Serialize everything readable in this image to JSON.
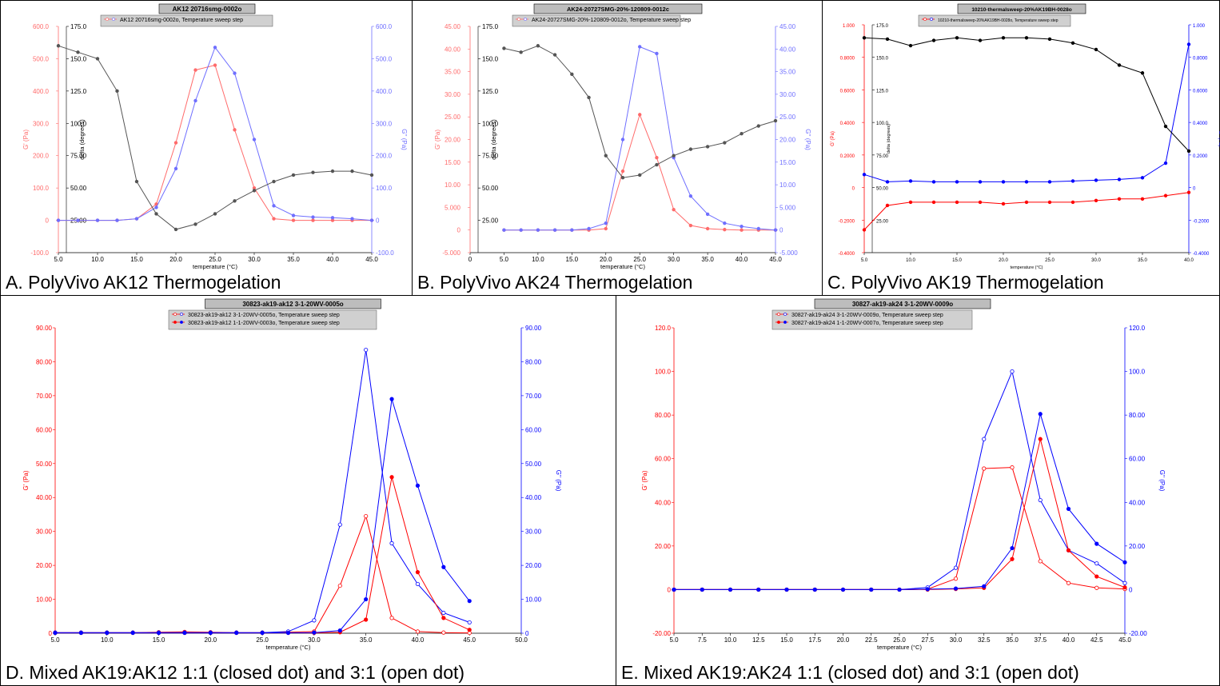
{
  "captions": {
    "a": "A. PolyVivo AK12 Thermogelation",
    "b": "B. PolyVivo AK24 Thermogelation",
    "c": "C. PolyVivo AK19 Thermogelation",
    "d": "D. Mixed AK19:AK12 1:1 (closed dot) and 3:1 (open dot)",
    "e": "E. Mixed AK19:AK24 1:1 (closed dot) and 3:1 (open dot)"
  },
  "colors": {
    "red": "#ff0000",
    "blue": "#0000ff",
    "black": "#000000",
    "pink": "#ff6b6b",
    "lightblue": "#6f6fff",
    "gray": "#555555"
  },
  "chart_data": [
    {
      "id": "a",
      "type": "line",
      "title": "AK12 20716smg-0002o",
      "legend": [
        "AK12 20716smg-0002o, Temperature sweep step"
      ],
      "xlabel": "temperature (°C)",
      "ylabel_left": "G' (Pa)",
      "ylabel_mid": "delta (degrees)",
      "ylabel_right": "G'' (Pa)",
      "xlim": [
        5,
        45
      ],
      "ylim_left": [
        -100,
        600
      ],
      "ylim_mid": [
        0,
        175
      ],
      "ylim_right": [
        -100,
        600
      ],
      "x_ticks": [
        "5.0",
        "10.0",
        "15.0",
        "20.0",
        "25.0",
        "30.0",
        "35.0",
        "40.0",
        "45.0"
      ],
      "y_ticks_left": [
        "-100.0",
        "0",
        "100.0",
        "200.0",
        "300.0",
        "400.0",
        "500.0",
        "600.0"
      ],
      "y_ticks_mid": [
        "25.00",
        "50.00",
        "75.00",
        "100.0",
        "125.0",
        "150.0",
        "175.0"
      ],
      "y_ticks_right": [
        "-100.0",
        "0",
        "100.0",
        "200.0",
        "300.0",
        "400.0",
        "500.0",
        "600.0"
      ],
      "series": [
        {
          "axis": "left",
          "color": "pink",
          "x": [
            5,
            7.5,
            10,
            12.5,
            15,
            17.5,
            20,
            22.5,
            25,
            27.5,
            30,
            32.5,
            35,
            37.5,
            40,
            42.5,
            45
          ],
          "values": [
            0,
            0,
            0,
            0,
            5,
            50,
            240,
            465,
            480,
            280,
            100,
            5,
            0,
            0,
            0,
            0,
            0
          ]
        },
        {
          "axis": "right",
          "color": "lightblue",
          "x": [
            5,
            7.5,
            10,
            12.5,
            15,
            17.5,
            20,
            22.5,
            25,
            27.5,
            30,
            32.5,
            35,
            37.5,
            40,
            42.5,
            45
          ],
          "values": [
            0,
            0,
            0,
            0,
            5,
            40,
            160,
            370,
            535,
            455,
            250,
            45,
            15,
            10,
            8,
            5,
            0
          ]
        },
        {
          "axis": "mid",
          "color": "gray",
          "x": [
            5,
            7.5,
            10,
            12.5,
            15,
            17.5,
            20,
            22.5,
            25,
            27.5,
            30,
            32.5,
            35,
            37.5,
            40,
            42.5,
            45
          ],
          "values": [
            160,
            155,
            150,
            125,
            55,
            30,
            18,
            22,
            30,
            40,
            48,
            55,
            60,
            62,
            63,
            63,
            60
          ]
        }
      ]
    },
    {
      "id": "b",
      "type": "line",
      "title": "AK24-20727SMG-20%-120809-0012c",
      "legend": [
        "AK24-20727SMG-20%-120809-0012o, Temperature sweep step"
      ],
      "xlabel": "temperature (°C)",
      "ylabel_left": "G' (Pa)",
      "ylabel_mid": "delta (degrees)",
      "ylabel_right": "G'' (Pa)",
      "xlim": [
        0,
        45
      ],
      "ylim_left": [
        -5,
        45
      ],
      "ylim_mid": [
        0,
        175
      ],
      "ylim_right": [
        -5,
        45
      ],
      "x_ticks": [
        "0",
        "5.0",
        "10.0",
        "15.0",
        "20.0",
        "25.0",
        "30.0",
        "35.0",
        "40.0",
        "45.0"
      ],
      "y_ticks_left": [
        "-5.000",
        "0",
        "5.000",
        "10.00",
        "15.00",
        "20.00",
        "25.00",
        "30.00",
        "35.00",
        "40.00",
        "45.00"
      ],
      "y_ticks_mid": [
        "25.00",
        "50.00",
        "75.00",
        "100.0",
        "125.0",
        "150.0",
        "175.0"
      ],
      "y_ticks_right": [
        "-5.000",
        "0",
        "5.000",
        "10.00",
        "15.00",
        "20.00",
        "25.00",
        "30.00",
        "35.00",
        "40.00",
        "45.00"
      ],
      "series": [
        {
          "axis": "left",
          "color": "pink",
          "x": [
            5,
            7.5,
            10,
            12.5,
            15,
            17.5,
            20,
            22.5,
            25,
            27.5,
            30,
            32.5,
            35,
            37.5,
            40,
            42.5,
            45
          ],
          "values": [
            0,
            0,
            0,
            0,
            0,
            0,
            0.3,
            13,
            25.5,
            16,
            4.5,
            1,
            0.3,
            0.1,
            0,
            0,
            0
          ]
        },
        {
          "axis": "right",
          "color": "lightblue",
          "x": [
            5,
            7.5,
            10,
            12.5,
            15,
            17.5,
            20,
            22.5,
            25,
            27.5,
            30,
            32.5,
            35,
            37.5,
            40,
            42.5,
            45
          ],
          "values": [
            0,
            0,
            0,
            0,
            0,
            0.3,
            1.5,
            20,
            40.5,
            39,
            16,
            7.5,
            3.5,
            1.5,
            0.8,
            0.3,
            0
          ]
        },
        {
          "axis": "mid",
          "color": "gray",
          "x": [
            5,
            7.5,
            10,
            12.5,
            15,
            17.5,
            20,
            22.5,
            25,
            27.5,
            30,
            32.5,
            35,
            37.5,
            40,
            42.5,
            45
          ],
          "values": [
            158,
            155,
            160,
            153,
            138,
            120,
            75,
            58,
            60,
            68,
            75,
            80,
            82,
            85,
            92,
            98,
            102
          ]
        }
      ]
    },
    {
      "id": "c",
      "type": "line",
      "title": "10210-thermalsweep-20%AK19BH-0028o",
      "legend": [
        "10210-thermalsweep-20%AK19BH-0028o, Temperature sweep step"
      ],
      "xlabel": "temperature (°C)",
      "ylabel_left": "G' (Pa)",
      "ylabel_mid": "delta (degrees)",
      "ylabel_right": "G'' (Pa)",
      "xlim": [
        5,
        40
      ],
      "ylim_left": [
        -0.4,
        1.0
      ],
      "ylim_mid": [
        0,
        175
      ],
      "ylim_right": [
        -0.4,
        1.0
      ],
      "x_ticks": [
        "5.0",
        "10.0",
        "15.0",
        "20.0",
        "25.0",
        "30.0",
        "35.0",
        "40.0"
      ],
      "y_ticks_left": [
        "-0.4000",
        "-0.2000",
        "0",
        "0.2000",
        "0.4000",
        "0.6000",
        "0.8000",
        "1.000"
      ],
      "y_ticks_mid": [
        "25.00",
        "50.00",
        "75.00",
        "100.0",
        "125.0",
        "150.0",
        "175.0"
      ],
      "y_ticks_right": [
        "-0.4000",
        "-0.2000",
        "0",
        "0.2000",
        "0.4000",
        "0.6000",
        "0.8000",
        "1.000"
      ],
      "series": [
        {
          "axis": "left",
          "color": "red",
          "x": [
            5,
            7.5,
            10,
            12.5,
            15,
            17.5,
            20,
            22.5,
            25,
            27.5,
            30,
            32.5,
            35,
            37.5,
            40
          ],
          "values": [
            -0.26,
            -0.11,
            -0.09,
            -0.09,
            -0.09,
            -0.09,
            -0.1,
            -0.09,
            -0.09,
            -0.09,
            -0.08,
            -0.07,
            -0.07,
            -0.05,
            -0.03
          ]
        },
        {
          "axis": "right",
          "color": "blue",
          "x": [
            5,
            7.5,
            10,
            12.5,
            15,
            17.5,
            20,
            22.5,
            25,
            27.5,
            30,
            32.5,
            35,
            37.5,
            40
          ],
          "values": [
            0.08,
            0.035,
            0.04,
            0.035,
            0.035,
            0.035,
            0.035,
            0.035,
            0.035,
            0.04,
            0.045,
            0.05,
            0.06,
            0.15,
            0.88
          ]
        },
        {
          "axis": "mid",
          "color": "black",
          "x": [
            5,
            7.5,
            10,
            12.5,
            15,
            17.5,
            20,
            22.5,
            25,
            27.5,
            30,
            32.5,
            35,
            37.5,
            40
          ],
          "values": [
            165,
            164,
            159,
            163,
            165,
            163,
            165,
            165,
            164,
            161,
            156,
            144,
            138,
            97,
            78
          ]
        }
      ]
    },
    {
      "id": "d",
      "type": "line",
      "title": "30823-ak19-ak12 3-1-20WV-0005o",
      "legend": [
        "30823-ak19-ak12 3-1-20WV-0005o, Temperature sweep step",
        "30823-ak19-ak12 1-1-20WV-0003o, Temperature sweep step"
      ],
      "xlabel": "temperature (°C)",
      "ylabel_left": "G' (Pa)",
      "ylabel_right": "G'' (Pa)",
      "xlim": [
        5,
        50
      ],
      "ylim_left": [
        0,
        90
      ],
      "ylim_right": [
        0,
        90
      ],
      "x_ticks": [
        "5.0",
        "10.0",
        "15.0",
        "20.0",
        "25.0",
        "30.0",
        "35.0",
        "40.0",
        "45.0",
        "50.0"
      ],
      "y_ticks_left": [
        "0",
        "10.00",
        "20.00",
        "30.00",
        "40.00",
        "50.00",
        "60.00",
        "70.00",
        "80.00",
        "90.00"
      ],
      "y_ticks_right": [
        "0",
        "10.00",
        "20.00",
        "30.00",
        "40.00",
        "50.00",
        "60.00",
        "70.00",
        "80.00",
        "90.00"
      ],
      "series": [
        {
          "name": "30823-ak19-ak12 3-1-20WV-0005o",
          "axis": "left",
          "color": "red",
          "open": true,
          "x": [
            5,
            7.5,
            10,
            12.5,
            15,
            17.5,
            20,
            22.5,
            25,
            27.5,
            30,
            32.5,
            35,
            37.5,
            40,
            42.5,
            45
          ],
          "values": [
            0.2,
            0.2,
            0.2,
            0.2,
            0.3,
            0.4,
            0.3,
            0.2,
            0.2,
            0.3,
            0.5,
            14,
            34.5,
            4.5,
            0.5,
            0.2,
            0.1
          ]
        },
        {
          "name": "30823-ak19-ak12 3-1-20WV-0005o",
          "axis": "right",
          "color": "blue",
          "open": true,
          "x": [
            5,
            7.5,
            10,
            12.5,
            15,
            17.5,
            20,
            22.5,
            25,
            27.5,
            30,
            32.5,
            35,
            37.5,
            40,
            42.5,
            45
          ],
          "values": [
            0.2,
            0.2,
            0.2,
            0.2,
            0.2,
            0.2,
            0.2,
            0.2,
            0.2,
            0.5,
            3.8,
            32,
            83.5,
            26.5,
            14.5,
            6,
            3.2
          ]
        },
        {
          "name": "30823-ak19-ak12 1-1-20WV-0003o",
          "axis": "left",
          "color": "red",
          "open": false,
          "x": [
            5,
            7.5,
            10,
            12.5,
            15,
            17.5,
            20,
            22.5,
            25,
            27.5,
            30,
            32.5,
            35,
            37.5,
            40,
            42.5,
            45
          ],
          "values": [
            0.1,
            0.1,
            0.1,
            0.1,
            0.1,
            0.1,
            0.1,
            0.1,
            0.1,
            0.1,
            0.1,
            0.3,
            4,
            46,
            18,
            4.5,
            1
          ]
        },
        {
          "name": "30823-ak19-ak12 1-1-20WV-0003o",
          "axis": "right",
          "color": "blue",
          "open": false,
          "x": [
            5,
            7.5,
            10,
            12.5,
            15,
            17.5,
            20,
            22.5,
            25,
            27.5,
            30,
            32.5,
            35,
            37.5,
            40,
            42.5,
            45
          ],
          "values": [
            0.1,
            0.1,
            0.1,
            0.1,
            0.1,
            0.1,
            0.1,
            0.1,
            0.1,
            0.1,
            0.2,
            0.8,
            10,
            69,
            43.5,
            19.5,
            9.5
          ]
        }
      ]
    },
    {
      "id": "e",
      "type": "line",
      "title": "30827-ak19-ak24 3-1-20WV-0009o",
      "legend": [
        "30827-ak19-ak24 3-1-20WV-0009o, Temperature sweep step",
        "30827-ak19-ak24 1-1-20WV-0007o, Temperature sweep step"
      ],
      "xlabel": "temperature (°C)",
      "ylabel_left": "G' (Pa)",
      "ylabel_right": "G'' (Pa)",
      "xlim": [
        5,
        45
      ],
      "ylim_left": [
        -20,
        120
      ],
      "ylim_right": [
        -20,
        120
      ],
      "x_ticks": [
        "5.0",
        "7.5",
        "10.0",
        "12.5",
        "15.0",
        "17.5",
        "20.0",
        "22.5",
        "25.0",
        "27.5",
        "30.0",
        "32.5",
        "35.0",
        "37.5",
        "40.0",
        "42.5",
        "45.0"
      ],
      "y_ticks_left": [
        "-20.00",
        "0",
        "20.00",
        "40.00",
        "60.00",
        "80.00",
        "100.0",
        "120.0"
      ],
      "y_ticks_right": [
        "-20.00",
        "0",
        "20.00",
        "40.00",
        "60.00",
        "80.00",
        "100.0",
        "120.0"
      ],
      "series": [
        {
          "name": "30827-ak19-ak24 3-1-20WV-0009o",
          "axis": "left",
          "color": "red",
          "open": true,
          "x": [
            5,
            7.5,
            10,
            12.5,
            15,
            17.5,
            20,
            22.5,
            25,
            27.5,
            30,
            32.5,
            35,
            37.5,
            40,
            42.5,
            45
          ],
          "values": [
            0,
            0,
            0,
            0,
            0,
            0,
            0,
            0,
            0,
            0.2,
            5,
            55.5,
            56,
            13,
            3,
            0.8,
            0.3
          ]
        },
        {
          "name": "30827-ak19-ak24 3-1-20WV-0009o",
          "axis": "right",
          "color": "blue",
          "open": true,
          "x": [
            5,
            7.5,
            10,
            12.5,
            15,
            17.5,
            20,
            22.5,
            25,
            27.5,
            30,
            32.5,
            35,
            37.5,
            40,
            42.5,
            45
          ],
          "values": [
            0,
            0,
            0,
            0,
            0,
            0,
            0,
            0,
            0,
            1,
            10,
            69,
            100,
            41,
            18,
            12,
            3
          ]
        },
        {
          "name": "30827-ak19-ak24 1-1-20WV-0007o",
          "axis": "left",
          "color": "red",
          "open": false,
          "x": [
            5,
            7.5,
            10,
            12.5,
            15,
            17.5,
            20,
            22.5,
            25,
            27.5,
            30,
            32.5,
            35,
            37.5,
            40,
            42.5,
            45
          ],
          "values": [
            0,
            0,
            0,
            0,
            0,
            0,
            0,
            0,
            0,
            0,
            0.3,
            0.8,
            14,
            69,
            18,
            6,
            1
          ]
        },
        {
          "name": "30827-ak19-ak24 1-1-20WV-0007o",
          "axis": "right",
          "color": "blue",
          "open": false,
          "x": [
            5,
            7.5,
            10,
            12.5,
            15,
            17.5,
            20,
            22.5,
            25,
            27.5,
            30,
            32.5,
            35,
            37.5,
            40,
            42.5,
            45
          ],
          "values": [
            0,
            0,
            0,
            0,
            0,
            0,
            0,
            0,
            0,
            0.2,
            0.5,
            1.5,
            19,
            80.5,
            37,
            21,
            12.5
          ]
        }
      ]
    }
  ]
}
